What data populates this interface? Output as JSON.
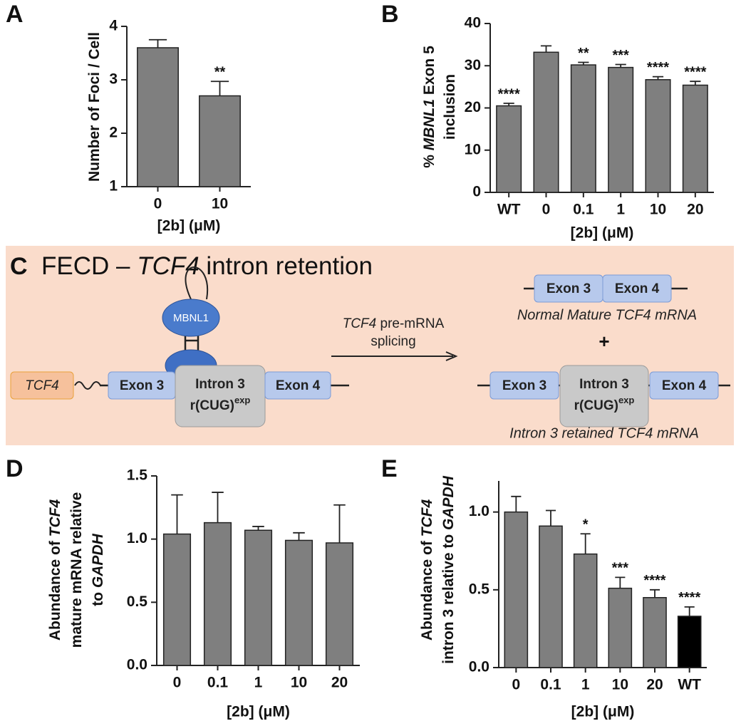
{
  "chart_data": [
    {
      "type": "bar",
      "panel_label": "A",
      "y_label": [
        [
          {
            "text": "Number of Foci / Cell"
          }
        ]
      ],
      "x_label": "[2b]  (μM)",
      "categories": [
        "0",
        "10"
      ],
      "values": [
        3.6,
        2.7
      ],
      "errors": [
        0.15,
        0.27
      ],
      "annotations": [
        null,
        "**"
      ],
      "colors": [
        "#7f7f7f",
        "#7f7f7f"
      ],
      "ylim": [
        1,
        4
      ],
      "yticks": [
        1,
        2,
        3,
        4
      ]
    },
    {
      "type": "bar",
      "panel_label": "B",
      "y_label": [
        [
          {
            "text": "% "
          },
          {
            "text": "MBNL1",
            "italic": true
          },
          {
            "text": " Exon 5"
          }
        ],
        [
          {
            "text": "inclusion"
          }
        ]
      ],
      "x_label": "[2b]  (μM)",
      "categories": [
        "WT",
        "0",
        "0.1",
        "1",
        "10",
        "20"
      ],
      "values": [
        20.5,
        33.2,
        30.2,
        29.6,
        26.7,
        25.4
      ],
      "errors": [
        0.6,
        1.5,
        0.6,
        0.7,
        0.7,
        0.9
      ],
      "annotations": [
        "****",
        null,
        "**",
        "***",
        "****",
        "****"
      ],
      "colors": [
        "#7f7f7f",
        "#7f7f7f",
        "#7f7f7f",
        "#7f7f7f",
        "#7f7f7f",
        "#7f7f7f"
      ],
      "ylim": [
        0,
        40
      ],
      "yticks": [
        0,
        10,
        20,
        30,
        40
      ]
    },
    {
      "type": "bar",
      "panel_label": "D",
      "y_label": [
        [
          {
            "text": "Abundance of "
          },
          {
            "text": "TCF4",
            "italic": true
          }
        ],
        [
          {
            "text": "mature mRNA relative"
          }
        ],
        [
          {
            "text": "to "
          },
          {
            "text": "GAPDH",
            "italic": true
          }
        ]
      ],
      "x_label": "[2b]  (μM)",
      "categories": [
        "0",
        "0.1",
        "1",
        "10",
        "20"
      ],
      "values": [
        1.04,
        1.13,
        1.07,
        0.99,
        0.97
      ],
      "errors": [
        0.31,
        0.24,
        0.03,
        0.06,
        0.3
      ],
      "annotations": [
        null,
        null,
        null,
        null,
        null
      ],
      "colors": [
        "#7f7f7f",
        "#7f7f7f",
        "#7f7f7f",
        "#7f7f7f",
        "#7f7f7f"
      ],
      "ylim": [
        0,
        1.5
      ],
      "yticks": [
        {
          "value": 0,
          "label": "0.0"
        },
        0.5,
        {
          "value": 1,
          "label": "1.0"
        },
        1.5
      ]
    },
    {
      "type": "bar",
      "panel_label": "E",
      "y_label": [
        [
          {
            "text": "Abundance of "
          },
          {
            "text": "TCF4",
            "italic": true
          }
        ],
        [
          {
            "text": "intron 3 relative to "
          },
          {
            "text": "GAPDH",
            "italic": true
          }
        ]
      ],
      "x_label": "[2b]  (μM)",
      "categories": [
        "0",
        "0.1",
        "1",
        "10",
        "20",
        "WT"
      ],
      "values": [
        1.0,
        0.91,
        0.73,
        0.51,
        0.45,
        0.33
      ],
      "errors": [
        0.1,
        0.1,
        0.13,
        0.07,
        0.05,
        0.06
      ],
      "annotations": [
        null,
        null,
        "*",
        "***",
        "****",
        "****"
      ],
      "colors": [
        "#7f7f7f",
        "#7f7f7f",
        "#7f7f7f",
        "#7f7f7f",
        "#7f7f7f",
        "#000000"
      ],
      "ylim": [
        0,
        1.2
      ],
      "yticks": [
        {
          "value": 0,
          "label": "0.0"
        },
        0.5,
        {
          "value": 1,
          "label": "1.0"
        }
      ]
    }
  ],
  "diagram": {
    "panel_label": "C",
    "title": [
      {
        "text": "FECD – "
      },
      {
        "text": "TCF4",
        "italic": true
      },
      {
        "text": " intron retention"
      }
    ],
    "gene": "TCF4",
    "protein": "MBNL1",
    "pre_mrna": {
      "exon_a": "Exon 3",
      "intron": "Intron 3",
      "repeat": "r(CUG)",
      "repeat_sup": "exp",
      "exon_b": "Exon 4"
    },
    "arrow_label": [
      [
        {
          "text": "TCF4",
          "italic": true
        },
        {
          "text": " pre-mRNA"
        }
      ],
      [
        {
          "text": "splicing"
        }
      ]
    ],
    "mature": {
      "exon_a": "Exon 3",
      "exon_b": "Exon 4",
      "caption": "Normal Mature TCF4 mRNA"
    },
    "plus": "+",
    "retained": {
      "exon_a": "Exon 3",
      "intron": "Intron 3",
      "repeat": "r(CUG)",
      "repeat_sup": "exp",
      "exon_b": "Exon 4",
      "caption": "Intron 3 retained TCF4 mRNA"
    }
  }
}
